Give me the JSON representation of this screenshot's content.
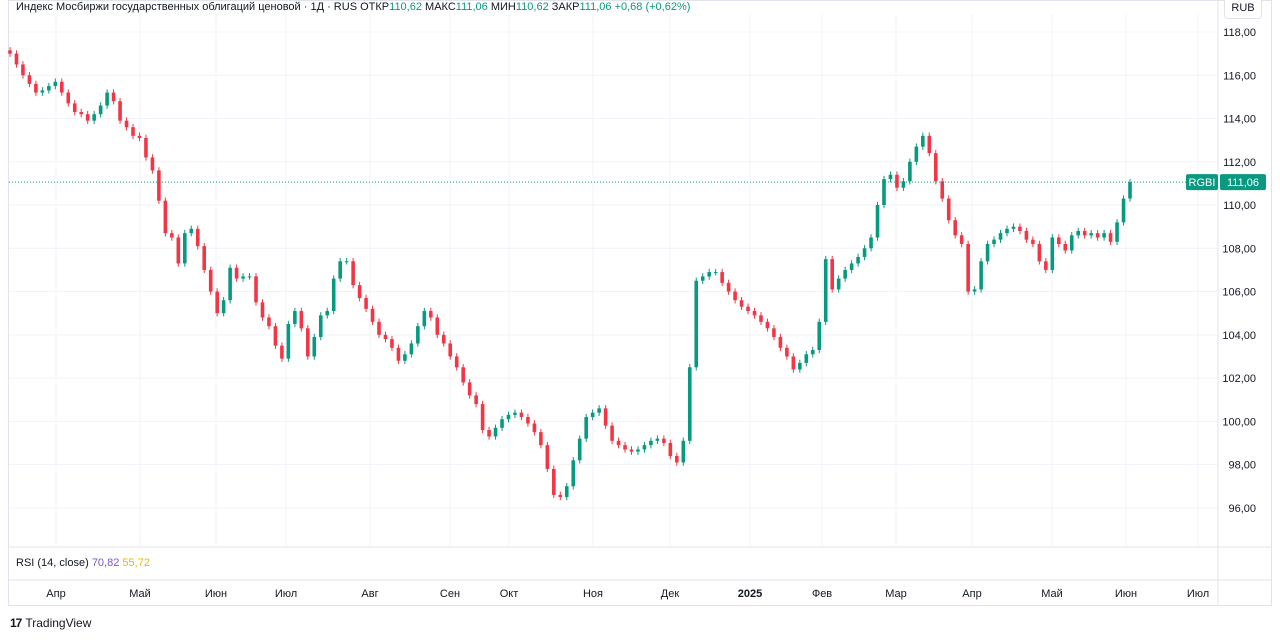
{
  "legend": {
    "title": "Индекс Мосбиржи государственных облигаций ценовой · 1Д · RUS",
    "open_label": "ОТКР",
    "open_value": "110,62",
    "high_label": "МАКС",
    "high_value": "111,06",
    "low_label": "МИН",
    "low_value": "110,62",
    "close_label": "ЗАКР",
    "close_value": "111,06",
    "change": "+0,68 (+0,62%)"
  },
  "currency": "RUB",
  "rsi": {
    "label": "RSI (14, close)",
    "value1": "70,82",
    "value2": "55,72"
  },
  "footer": {
    "brand": "TradingView"
  },
  "colors": {
    "up": "#089981",
    "down": "#f23645",
    "grid": "#f0f3fa",
    "rsi1": "#7e57c2",
    "rsi2": "#e6b800"
  },
  "chart_data": {
    "type": "candlestick",
    "symbol": "RGBI",
    "last_price": "111,06",
    "ylim": [
      94.5,
      118.5
    ],
    "yticks": [
      "118,00",
      "116,00",
      "114,00",
      "112,00",
      "110,00",
      "108,00",
      "106,00",
      "104,00",
      "102,00",
      "100,00",
      "98,00",
      "96,00"
    ],
    "x_labels": [
      "Апр",
      "Май",
      "Июн",
      "Июл",
      "Авг",
      "Сен",
      "Окт",
      "Ноя",
      "Дек",
      "2025",
      "Фев",
      "Мар",
      "Апр",
      "Май",
      "Июн",
      "Июл"
    ],
    "close_series": [
      117.0,
      116.5,
      116.0,
      115.6,
      115.2,
      115.3,
      115.5,
      115.7,
      115.2,
      114.7,
      114.3,
      114.2,
      113.9,
      114.2,
      114.6,
      115.2,
      114.8,
      113.9,
      113.6,
      113.2,
      113.1,
      112.2,
      111.6,
      110.2,
      108.7,
      108.5,
      107.3,
      108.7,
      108.9,
      108.1,
      107.0,
      106.0,
      105.0,
      105.6,
      107.1,
      106.6,
      106.7,
      106.7,
      105.5,
      104.8,
      104.4,
      103.5,
      102.9,
      104.5,
      105.1,
      104.3,
      103.0,
      103.9,
      104.9,
      105.1,
      106.6,
      107.4,
      107.4,
      106.3,
      105.7,
      105.2,
      104.6,
      104.0,
      103.8,
      103.4,
      102.8,
      103.1,
      103.6,
      104.4,
      105.1,
      104.8,
      104.0,
      103.6,
      103.0,
      102.5,
      101.8,
      101.2,
      100.8,
      99.6,
      99.3,
      99.7,
      100.1,
      100.3,
      100.4,
      100.2,
      99.9,
      99.5,
      98.9,
      97.8,
      96.6,
      96.5,
      97.0,
      98.2,
      99.2,
      100.2,
      100.4,
      100.6,
      99.8,
      99.1,
      98.9,
      98.7,
      98.6,
      98.7,
      98.9,
      99.1,
      99.2,
      99.0,
      98.4,
      98.1,
      99.1,
      102.5,
      106.5,
      106.7,
      106.9,
      106.9,
      106.4,
      106.0,
      105.6,
      105.3,
      105.1,
      104.9,
      104.6,
      104.3,
      103.9,
      103.4,
      103.0,
      102.4,
      102.7,
      103.1,
      103.3,
      104.6,
      107.5,
      106.1,
      106.6,
      107.0,
      107.3,
      107.6,
      108.0,
      108.5,
      110.0,
      111.2,
      111.4,
      110.8,
      111.1,
      112.0,
      112.7,
      113.2,
      112.4,
      111.1,
      110.3,
      109.3,
      108.6,
      108.2,
      106.0,
      106.1,
      107.4,
      108.2,
      108.4,
      108.7,
      108.9,
      109.0,
      108.8,
      108.4,
      108.2,
      107.4,
      107.0,
      108.5,
      108.2,
      107.9,
      108.6,
      108.8,
      108.6,
      108.7,
      108.5,
      108.7,
      108.3,
      109.2,
      110.3,
      111.06
    ]
  }
}
